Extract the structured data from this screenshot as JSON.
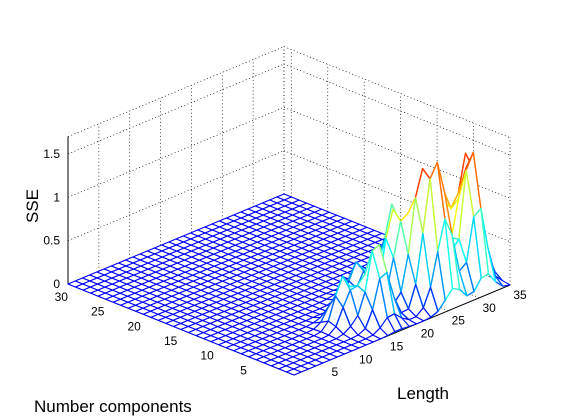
{
  "chart_data": {
    "type": "surface",
    "title": "",
    "zlabel": "SSE",
    "xlabel": "Length",
    "ylabel": "Number components",
    "zlim": [
      0,
      1.5
    ],
    "xlim": [
      0,
      35
    ],
    "ylim": [
      0,
      31
    ],
    "grid": true,
    "colormap": "jet",
    "z_ticks": [
      {
        "value": 0,
        "label": "0"
      },
      {
        "value": 0.5,
        "label": "0.5"
      },
      {
        "value": 1,
        "label": "1"
      },
      {
        "value": 1.5,
        "label": "1.5"
      }
    ],
    "x_ticks": [
      {
        "value": 5,
        "label": "5"
      },
      {
        "value": 10,
        "label": "10"
      },
      {
        "value": 15,
        "label": "15"
      },
      {
        "value": 20,
        "label": "20"
      },
      {
        "value": 25,
        "label": "25"
      },
      {
        "value": 30,
        "label": "30"
      },
      {
        "value": 35,
        "label": "35"
      }
    ],
    "y_ticks": [
      {
        "value": 5,
        "label": "5"
      },
      {
        "value": 10,
        "label": "10"
      },
      {
        "value": 15,
        "label": "15"
      },
      {
        "value": 20,
        "label": "20"
      },
      {
        "value": 25,
        "label": "25"
      },
      {
        "value": 30,
        "label": "30"
      }
    ],
    "peaks": [
      {
        "length": 31,
        "components": 2,
        "sse": 1.55
      },
      {
        "length": 26,
        "components": 2,
        "sse": 1.45
      },
      {
        "length": 33,
        "components": 4,
        "sse": 1.4
      },
      {
        "length": 29,
        "components": 5,
        "sse": 1.3
      },
      {
        "length": 24,
        "components": 3,
        "sse": 1.2
      },
      {
        "length": 31,
        "components": 7,
        "sse": 1.2
      },
      {
        "length": 22,
        "components": 5,
        "sse": 1.05
      },
      {
        "length": 17,
        "components": 3,
        "sse": 0.95
      },
      {
        "length": 27,
        "components": 9,
        "sse": 0.9
      },
      {
        "length": 33,
        "components": 11,
        "sse": 0.6
      },
      {
        "length": 20,
        "components": 8,
        "sse": 0.45
      },
      {
        "length": 14,
        "components": 5,
        "sse": 0.55
      }
    ]
  }
}
